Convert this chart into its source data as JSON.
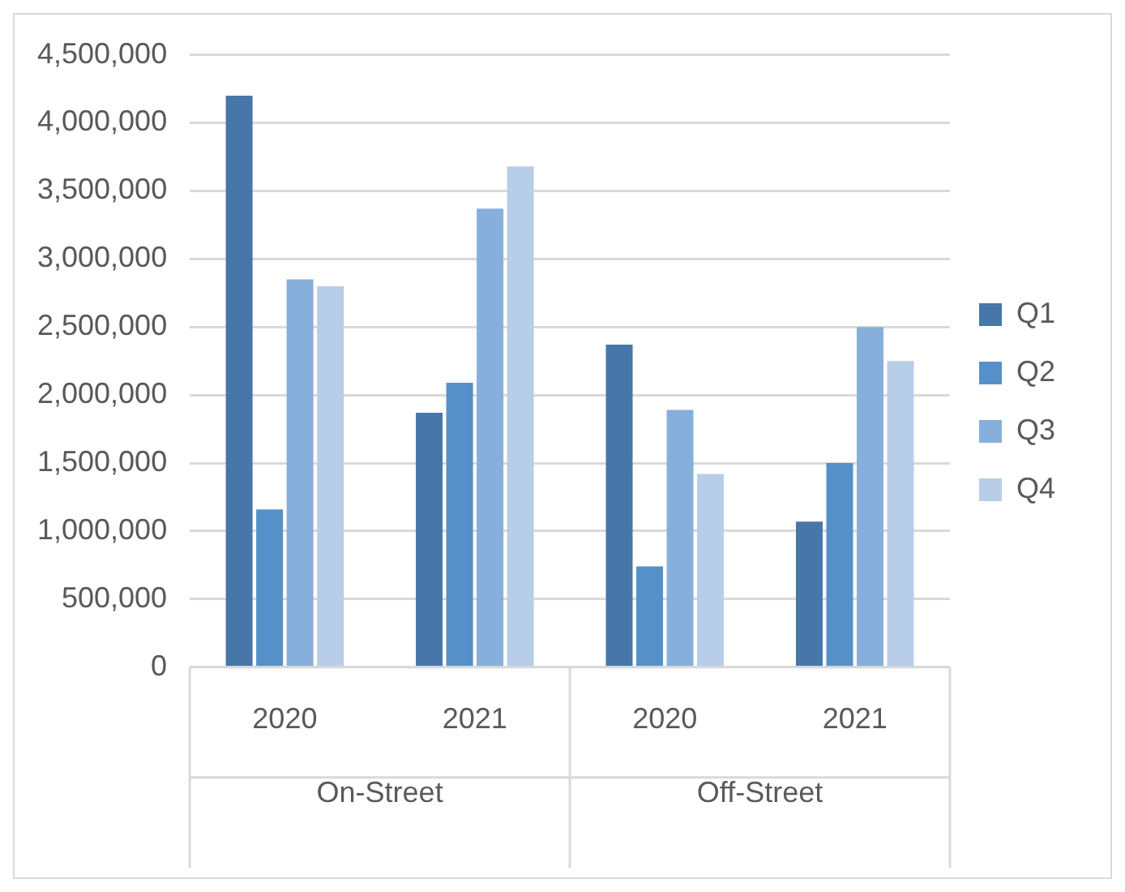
{
  "chart_data": {
    "type": "bar",
    "categories": [
      "2020",
      "2021",
      "2020",
      "2021"
    ],
    "annotations": [
      "On-Street",
      "Off-Street"
    ],
    "series": [
      {
        "name": "Q1",
        "color": "#4677a8",
        "values": [
          4200000,
          1870000,
          2370000,
          1070000
        ]
      },
      {
        "name": "Q2",
        "color": "#5591c8",
        "values": [
          1160000,
          2090000,
          740000,
          1500000
        ]
      },
      {
        "name": "Q3",
        "color": "#87afdb",
        "values": [
          2850000,
          3370000,
          1890000,
          2500000
        ]
      },
      {
        "name": "Q4",
        "color": "#b8cde8",
        "values": [
          2800000,
          3680000,
          1420000,
          2250000
        ]
      }
    ],
    "ylim": [
      0,
      4500000
    ],
    "yticks": [
      {
        "value": 0,
        "label": "0"
      },
      {
        "value": 500000,
        "label": "500,000"
      },
      {
        "value": 1000000,
        "label": "1,000,000"
      },
      {
        "value": 1500000,
        "label": "1,500,000"
      },
      {
        "value": 2000000,
        "label": "2,000,000"
      },
      {
        "value": 2500000,
        "label": "2,500,000"
      },
      {
        "value": 3000000,
        "label": "3,000,000"
      },
      {
        "value": 3500000,
        "label": "3,500,000"
      },
      {
        "value": 4000000,
        "label": "4,000,000"
      },
      {
        "value": 4500000,
        "label": "4,500,000"
      }
    ],
    "grid": "y",
    "legend": "right"
  }
}
